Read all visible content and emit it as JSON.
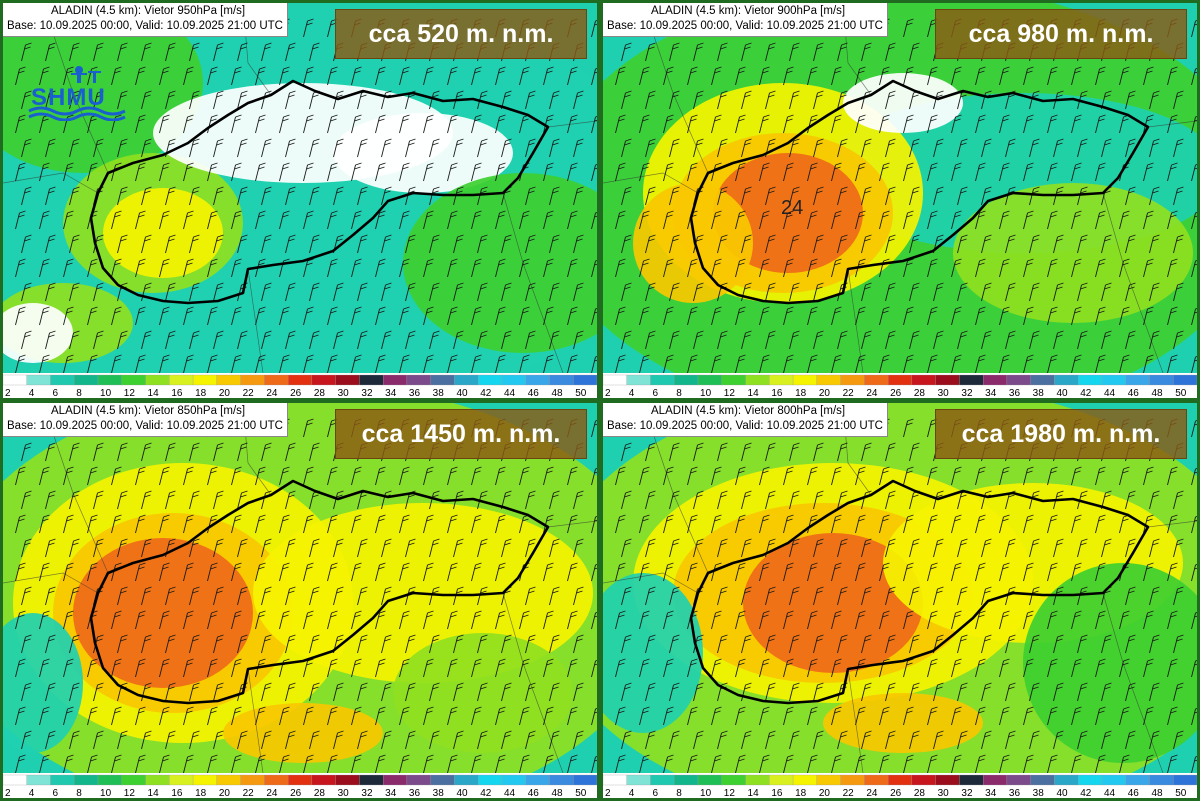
{
  "panels": [
    {
      "model_title": "ALADIN (4.5 km): Vietor 950hPa [m/s]",
      "run_info": "Base: 10.09.2025 00:00, Valid: 10.09.2025 21:00 UTC",
      "altitude_label": "cca 520 m. n.m.",
      "show_logo": true,
      "logo_text": "SHMU"
    },
    {
      "model_title": "ALADIN (4.5 km): Vietor 900hPa [m/s]",
      "run_info": "Base: 10.09.2025 00:00, Valid: 10.09.2025 21:00 UTC",
      "altitude_label": "cca 980 m. n.m.",
      "max_value": "24"
    },
    {
      "model_title": "ALADIN (4.5 km): Vietor 850hPa [m/s]",
      "run_info": "Base: 10.09.2025 00:00, Valid: 10.09.2025 21:00 UTC",
      "altitude_label": "cca 1450 m. n.m."
    },
    {
      "model_title": "ALADIN (4.5 km): Vietor 800hPa [m/s]",
      "run_info": "Base: 10.09.2025 00:00, Valid: 10.09.2025 21:00 UTC",
      "altitude_label": "cca 1980 m. n.m."
    }
  ],
  "legend": {
    "ticks": [
      "2",
      "4",
      "6",
      "8",
      "10",
      "12",
      "14",
      "16",
      "18",
      "20",
      "22",
      "24",
      "26",
      "28",
      "30",
      "32",
      "34",
      "36",
      "38",
      "40",
      "42",
      "44",
      "46",
      "48",
      "50"
    ],
    "colors": [
      "#ffffff",
      "#7fe3d6",
      "#1fc9b0",
      "#13b58a",
      "#1fbf55",
      "#3ecf30",
      "#8fe020",
      "#d8f020",
      "#f6f300",
      "#f8c800",
      "#f59a10",
      "#ef6a18",
      "#e23010",
      "#c8161e",
      "#9b0c1c",
      "#1e2a3a",
      "#8a2a6a",
      "#7a4a8a",
      "#4a6fa0",
      "#2aa6c8",
      "#14d6ee",
      "#22c8f0",
      "#3aa6ea",
      "#3a8ae0",
      "#2e74d8"
    ]
  },
  "wind_speed_colors": {
    "calm": "#ffffff",
    "light": "#1fd0b0",
    "moderate": "#3ecf30",
    "fresh": "#8fe020",
    "strong": "#f6f300",
    "gale": "#f8c800",
    "high": "#ef6a18"
  }
}
